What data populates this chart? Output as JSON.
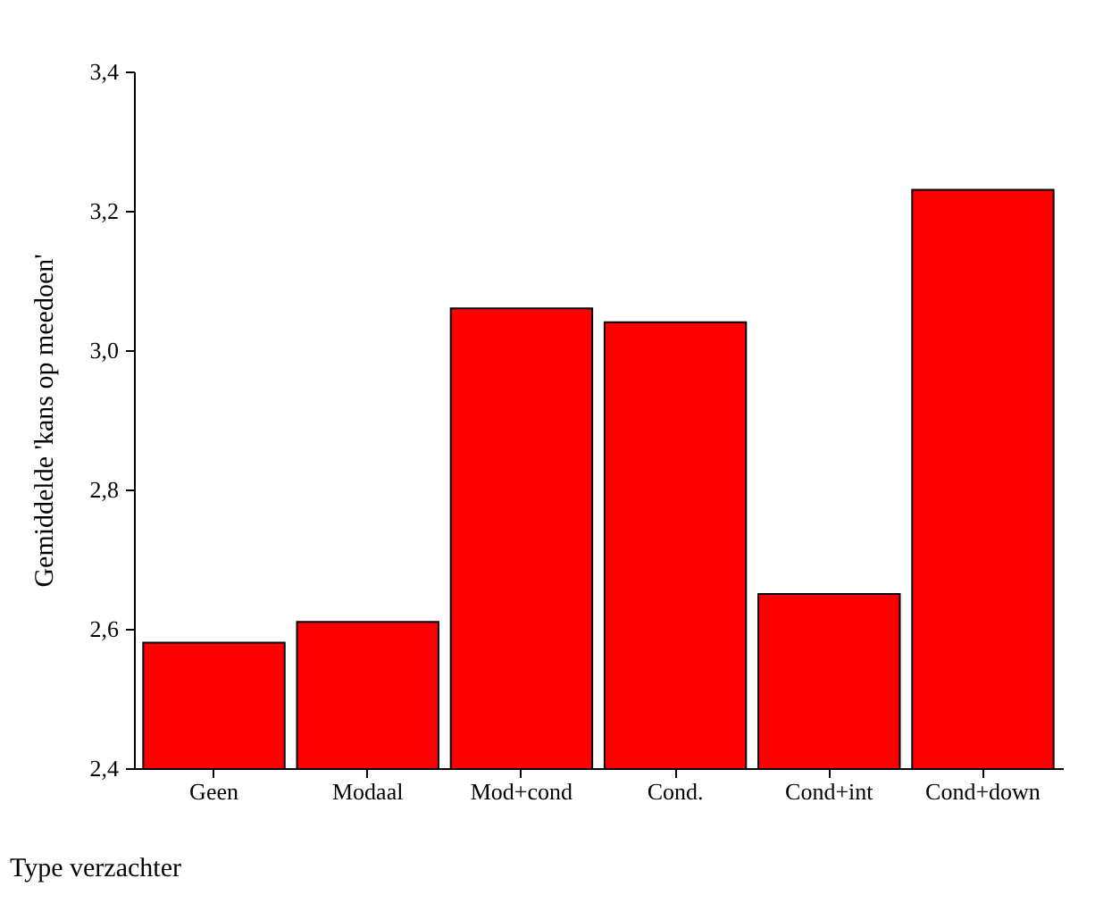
{
  "chart_data": {
    "type": "bar",
    "xlabel": "Type verzachter",
    "ylabel": "Gemiddelde 'kans op meedoen'",
    "categories": [
      "Geen",
      "Modaal",
      "Mod+cond",
      "Cond.",
      "Cond+int",
      "Cond+down"
    ],
    "values": [
      2.58,
      2.61,
      3.06,
      3.04,
      2.65,
      3.23
    ],
    "color": "#ff0000",
    "ylim": [
      2.4,
      3.4
    ],
    "yticks": [
      {
        "value": 2.4,
        "label": "2,4"
      },
      {
        "value": 2.6,
        "label": "2,6"
      },
      {
        "value": 2.8,
        "label": "2,8"
      },
      {
        "value": 3.0,
        "label": "3,0"
      },
      {
        "value": 3.2,
        "label": "3,2"
      },
      {
        "value": 3.4,
        "label": "3,4"
      }
    ],
    "grid": false
  }
}
